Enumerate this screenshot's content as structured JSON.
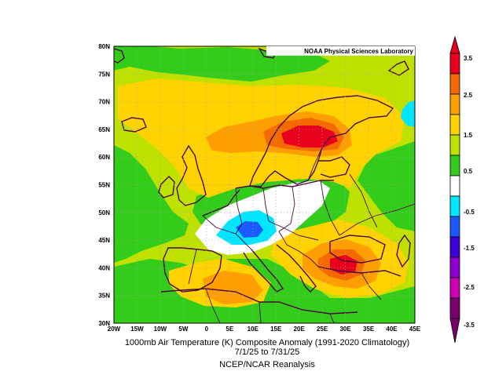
{
  "credit": "NOAA Physical Sciences Laboratory",
  "caption": {
    "line1": "1000mb Air Temperature (K) Composite Anomaly (1991-2020 Climatology)",
    "line2": "7/1/25  to 7/31/25",
    "line3": "NCEP/NCAR Reanalysis"
  },
  "map": {
    "lat_labels": [
      "80N",
      "75N",
      "70N",
      "65N",
      "60N",
      "55N",
      "50N",
      "45N",
      "40N",
      "35N",
      "30N"
    ],
    "lon_labels": [
      "20W",
      "15W",
      "10W",
      "5W",
      "0",
      "5E",
      "10E",
      "15E",
      "20E",
      "25E",
      "30E",
      "35E",
      "40E",
      "45E"
    ],
    "lat_range": [
      30,
      80
    ],
    "lon_range": [
      -20,
      45
    ],
    "grid": "dotted"
  },
  "colorbar": {
    "labels": [
      "3.5",
      "2.5",
      "1.5",
      "0.5",
      "-0.5",
      "-1.5",
      "-2.5",
      "-3.5"
    ],
    "colors": [
      "#e8001c",
      "#f56a00",
      "#ff9e00",
      "#ffd200",
      "#bfe100",
      "#33cc1a",
      "#ffffff",
      "#00e6ff",
      "#1a5aff",
      "#3f00d6",
      "#8f00cc",
      "#cc00b3",
      "#7a006b"
    ]
  }
}
